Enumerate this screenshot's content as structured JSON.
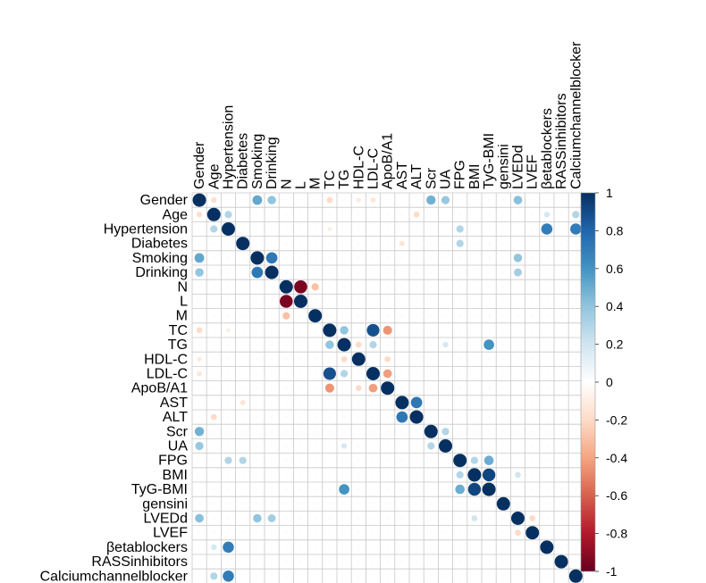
{
  "chart_data": {
    "type": "heatmap",
    "title": "",
    "variables": [
      "Gender",
      "Age",
      "Hypertension",
      "Diabetes",
      "Smoking",
      "Drinking",
      "N",
      "L",
      "M",
      "TC",
      "TG",
      "HDL-C",
      "LDL-C",
      "ApoB/A1",
      "AST",
      "ALT",
      "Scr",
      "UA",
      "FPG",
      "BMI",
      "TyG-BMI",
      "gensini",
      "LVEDd",
      "LVEF",
      "βetablockers",
      "RASSinhibitors",
      "Calciumchannelblocker"
    ],
    "value_range": [
      -1,
      1
    ],
    "legend": {
      "position": "right",
      "ticks": [
        "1",
        "0.8",
        "0.6",
        "0.4",
        "0.2",
        "0",
        "-0.2",
        "-0.4",
        "-0.6",
        "-0.8",
        "-1"
      ],
      "tick_values": [
        1,
        0.8,
        0.6,
        0.4,
        0.2,
        0,
        -0.2,
        -0.4,
        -0.6,
        -0.8,
        -1
      ]
    },
    "correlations": [
      [
        "Gender",
        "Age",
        -0.18
      ],
      [
        "Gender",
        "Smoking",
        0.52
      ],
      [
        "Gender",
        "Drinking",
        0.4
      ],
      [
        "Gender",
        "TC",
        -0.2
      ],
      [
        "Gender",
        "HDL-C",
        -0.12
      ],
      [
        "Gender",
        "LDL-C",
        -0.14
      ],
      [
        "Gender",
        "Scr",
        0.48
      ],
      [
        "Gender",
        "UA",
        0.38
      ],
      [
        "Gender",
        "LVEDd",
        0.42
      ],
      [
        "Age",
        "Hypertension",
        0.3
      ],
      [
        "Age",
        "ALT",
        -0.2
      ],
      [
        "Age",
        "βetablockers",
        0.18
      ],
      [
        "Age",
        "Calciumchannelblocker",
        0.3
      ],
      [
        "Hypertension",
        "FPG",
        0.3
      ],
      [
        "Hypertension",
        "βetablockers",
        0.7
      ],
      [
        "Hypertension",
        "Calciumchannelblocker",
        0.7
      ],
      [
        "Hypertension",
        "TC",
        -0.1
      ],
      [
        "Diabetes",
        "FPG",
        0.3
      ],
      [
        "Diabetes",
        "AST",
        -0.15
      ],
      [
        "Smoking",
        "Drinking",
        0.72
      ],
      [
        "Smoking",
        "LVEDd",
        0.4
      ],
      [
        "Drinking",
        "LVEDd",
        0.35
      ],
      [
        "N",
        "L",
        -0.95
      ],
      [
        "N",
        "M",
        -0.3
      ],
      [
        "TC",
        "TG",
        0.4
      ],
      [
        "TC",
        "LDL-C",
        0.88
      ],
      [
        "TC",
        "ApoB/A1",
        -0.45
      ],
      [
        "TG",
        "HDL-C",
        -0.2
      ],
      [
        "TG",
        "LDL-C",
        0.3
      ],
      [
        "TG",
        "TyG-BMI",
        0.6
      ],
      [
        "TG",
        "UA",
        0.18
      ],
      [
        "HDL-C",
        "ApoB/A1",
        -0.2
      ],
      [
        "LDL-C",
        "ApoB/A1",
        -0.42
      ],
      [
        "AST",
        "ALT",
        0.72
      ],
      [
        "Scr",
        "UA",
        0.3
      ],
      [
        "FPG",
        "BMI",
        0.3
      ],
      [
        "FPG",
        "TyG-BMI",
        0.5
      ],
      [
        "BMI",
        "TyG-BMI",
        0.92
      ],
      [
        "BMI",
        "LVEDd",
        0.2
      ],
      [
        "LVEDd",
        "LVEF",
        -0.2
      ]
    ]
  }
}
